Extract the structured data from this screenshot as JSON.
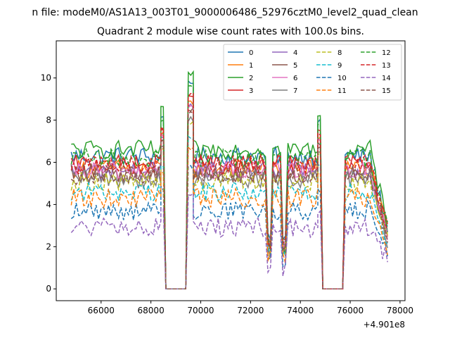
{
  "chart_data": {
    "type": "line",
    "suptitle": "n file: modeM0/AS1A13_003T01_9000006486_52976cztM0_level2_quad_clean",
    "title": "Quadrant 2 module wise count rates with 100.0s bins.",
    "xlabel": "",
    "ylabel": "",
    "x_offset_label": "+4.901e8",
    "xlim": [
      64200,
      78200
    ],
    "ylim": [
      -0.56,
      11.76
    ],
    "xticks": [
      66000,
      68000,
      70000,
      72000,
      74000,
      76000,
      78000
    ],
    "yticks": [
      0,
      2,
      4,
      6,
      8,
      10
    ],
    "grid": false,
    "legend_position": "top-right",
    "x_start": 64800,
    "bin_seconds": 100,
    "segments": [
      {
        "from": 64800,
        "to": 68400,
        "kind": "data"
      },
      {
        "from": 68400,
        "to": 68500,
        "kind": "peak",
        "value": 8.0
      },
      {
        "from": 68600,
        "to": 69400,
        "kind": "zero"
      },
      {
        "from": 69500,
        "to": 69700,
        "kind": "peak",
        "value": 9.6
      },
      {
        "from": 69700,
        "to": 72600,
        "kind": "data"
      },
      {
        "from": 72700,
        "to": 74700,
        "kind": "data-dips"
      },
      {
        "from": 74700,
        "to": 74800,
        "kind": "peak",
        "value": 7.8
      },
      {
        "from": 74900,
        "to": 75700,
        "kind": "zero"
      },
      {
        "from": 75800,
        "to": 77500,
        "kind": "data-decay"
      }
    ],
    "series": [
      {
        "name": "0",
        "color": "#1f77b4",
        "style": "solid",
        "level": 6.3
      },
      {
        "name": "1",
        "color": "#ff7f0e",
        "style": "solid",
        "level": 5.7
      },
      {
        "name": "2",
        "color": "#2ca02c",
        "style": "solid",
        "level": 6.6
      },
      {
        "name": "3",
        "color": "#d62728",
        "style": "solid",
        "level": 5.9
      },
      {
        "name": "4",
        "color": "#9467bd",
        "style": "solid",
        "level": 5.6
      },
      {
        "name": "5",
        "color": "#8c564b",
        "style": "solid",
        "level": 5.5
      },
      {
        "name": "6",
        "color": "#e377c2",
        "style": "solid",
        "level": 5.6
      },
      {
        "name": "7",
        "color": "#7f7f7f",
        "style": "solid",
        "level": 5.2
      },
      {
        "name": "8",
        "color": "#bcbd22",
        "style": "dashed",
        "level": 5.1
      },
      {
        "name": "9",
        "color": "#17becf",
        "style": "dashed",
        "level": 4.6
      },
      {
        "name": "10",
        "color": "#1f77b4",
        "style": "dashed",
        "level": 3.7
      },
      {
        "name": "11",
        "color": "#ff7f0e",
        "style": "dashed",
        "level": 4.3
      },
      {
        "name": "12",
        "color": "#2ca02c",
        "style": "dashed",
        "level": 6.2
      },
      {
        "name": "13",
        "color": "#d62728",
        "style": "dashed",
        "level": 5.9
      },
      {
        "name": "14",
        "color": "#9467bd",
        "style": "dashed",
        "level": 2.9
      },
      {
        "name": "15",
        "color": "#8c564b",
        "style": "dashed",
        "level": 5.4
      }
    ]
  }
}
